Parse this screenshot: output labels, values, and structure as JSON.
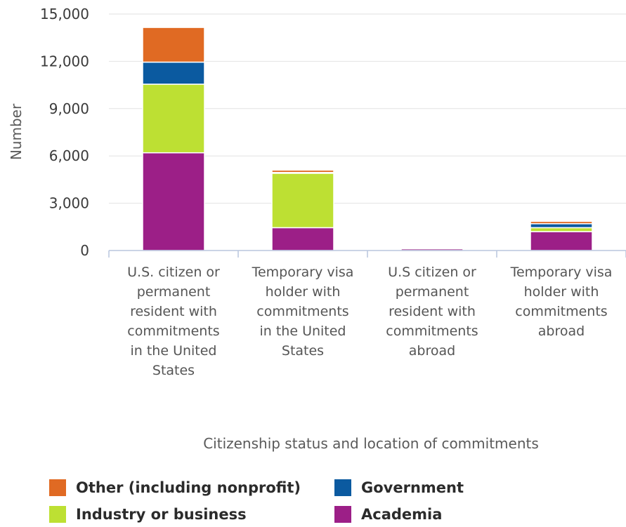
{
  "chart_data": {
    "type": "bar",
    "stacked": true,
    "xlabel": "Citizenship status and location of commitments",
    "ylabel": "Number",
    "ylim": [
      0,
      15000
    ],
    "yticks": [
      "0",
      "3,000",
      "6,000",
      "9,000",
      "12,000",
      "15,000"
    ],
    "ytick_values": [
      0,
      3000,
      6000,
      9000,
      12000,
      15000
    ],
    "grid": true,
    "legend_position": "bottom-left",
    "categories": [
      "U.S. citizen or permanent resident with commitments in the United States",
      "Temporary visa holder with commitments in the United States",
      "U.S citizen or permanent resident with commitments abroad",
      "Temporary visa holder with commitments abroad"
    ],
    "category_lines": [
      [
        "U.S. citizen or",
        "permanent",
        "resident with",
        "commitments",
        "in the United",
        "States"
      ],
      [
        "Temporary visa",
        "holder with",
        "commitments",
        "in the United",
        "States"
      ],
      [
        "U.S citizen or",
        "permanent",
        "resident with",
        "commitments",
        "abroad"
      ],
      [
        "Temporary visa",
        "holder with",
        "commitments",
        "abroad"
      ]
    ],
    "series": [
      {
        "name": "Academia",
        "color": "#9c1f87",
        "values": [
          6200,
          1450,
          110,
          1200
        ]
      },
      {
        "name": "Industry or business",
        "color": "#bde033",
        "values": [
          4350,
          3450,
          10,
          250
        ]
      },
      {
        "name": "Government",
        "color": "#0b5aa0",
        "values": [
          1400,
          50,
          5,
          250
        ]
      },
      {
        "name": "Other (including nonprofit)",
        "color": "#e06a23",
        "values": [
          2200,
          150,
          10,
          150
        ]
      }
    ]
  },
  "legend": {
    "items": [
      {
        "label": "Other (including nonprofit)",
        "color": "#e06a23"
      },
      {
        "label": "Government",
        "color": "#0b5aa0"
      },
      {
        "label": "Industry or business",
        "color": "#bde033"
      },
      {
        "label": "Academia",
        "color": "#9c1f87"
      }
    ]
  }
}
